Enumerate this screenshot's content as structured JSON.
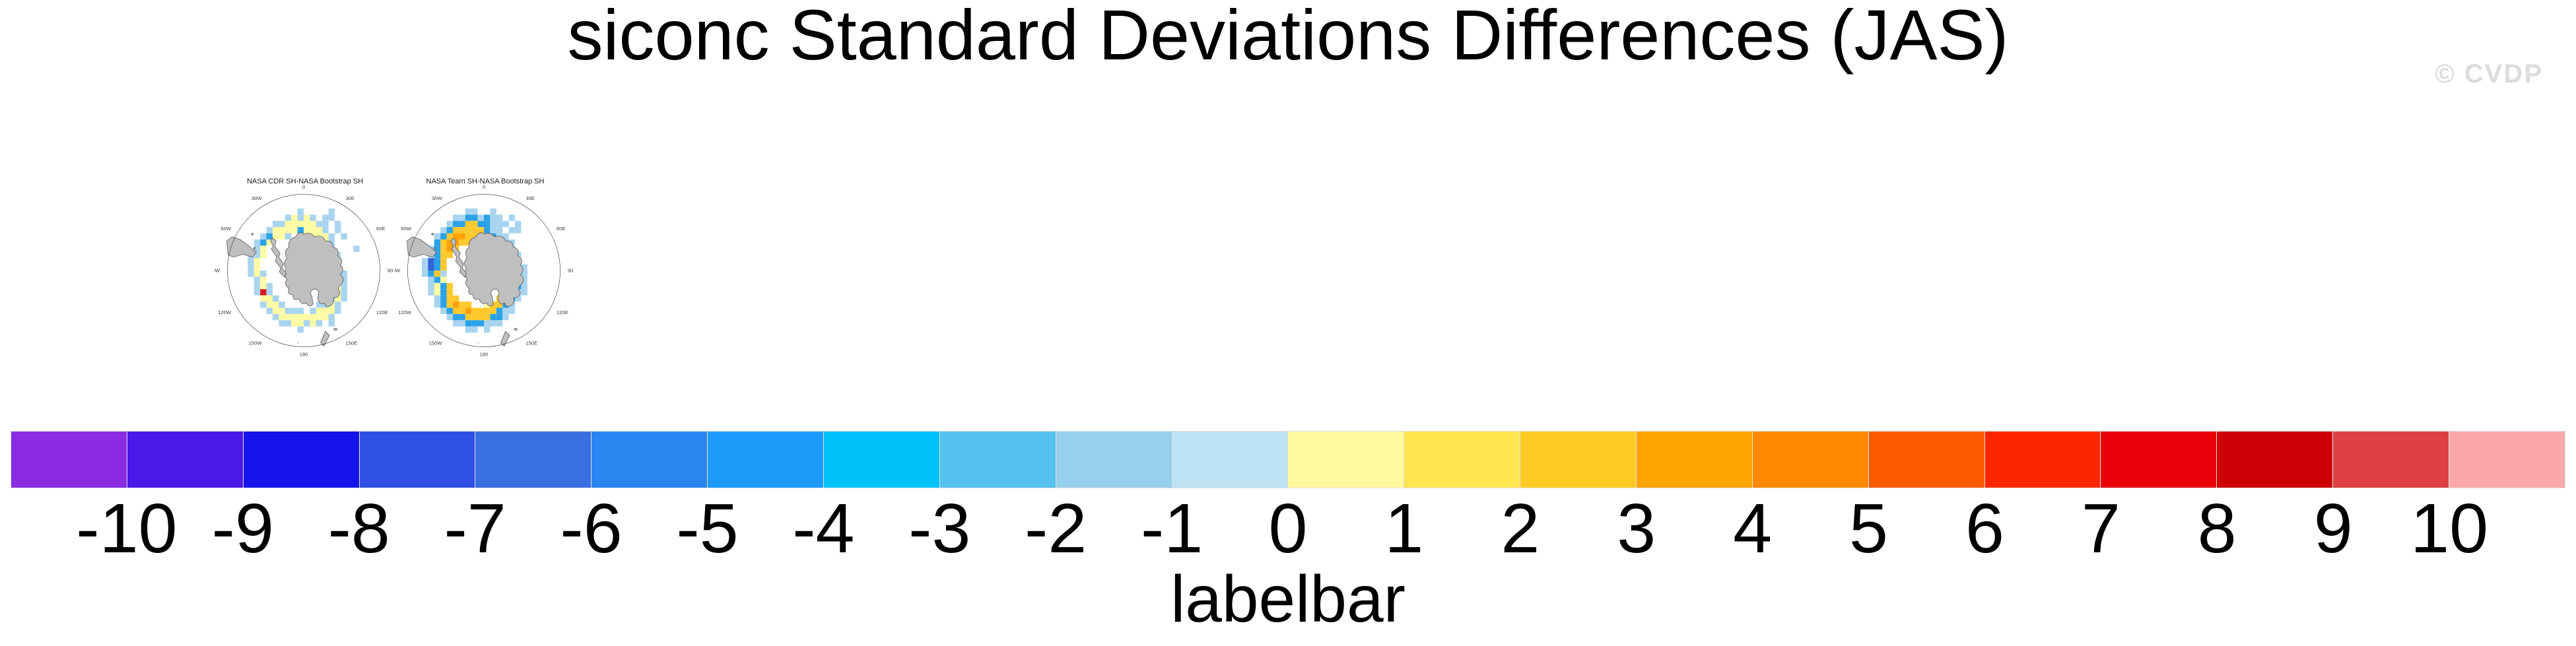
{
  "title": "siconc Standard Deviations Differences (JAS)",
  "watermark": "© CVDP",
  "chart_data": {
    "type": "heatmap",
    "title": "siconc Standard Deviations Differences (JAS)",
    "variable": "siconc",
    "season": "JAS",
    "panels": [
      {
        "title": "NASA CDR SH-NASA Bootstrap SH",
        "projection": "south polar stereographic",
        "grid": [
          "......................",
          "..........b....b......",
          "........bybyb.bb......",
          "......bbyyyyybb.b.....",
          ".....byyyyByyyb.b.....",
          "....bByyb.byyyyb.b....",
          "...bBy......byyb......",
          "...by........yyb...b..",
          "..bby.........ybb.....",
          "..by...........yb.....",
          "..by...........yb.....",
          "..byb...........yb....",
          "...by...........yb....",
          "...byb..........yb....",
          "...brb.........byb....",
          "....yyb........byb....",
          "....byyb.....bbyb.....",
          ".....byybbb.byyyb.....",
          "......byyyyyyyyb......",
          ".......bbyybyb.b......",
          "..........b...........",
          "......................"
        ]
      },
      {
        "title": "NASA Team SH-NASA Bootstrap SH",
        "projection": "south polar stereographic",
        "grid": [
          "......................",
          "........bb..b.........",
          "......bbBBbBbb.b......",
          ".....bBBYYBBbbb.b.....",
          "....bBYYYYYBbb.bb.....",
          "...bBYooYYYYBbb.......",
          "...BYooYY.byYBbb......",
          "..bBYoY.....yYBb......",
          "..bBYY.......YYBb.....",
          ".bdBY.........YBb.....",
          ".bdBY.........YBbb....",
          ".bBYb..........YBb....",
          "..bBy..........YBb....",
          "..byBY........bYBb....",
          "..byBY........YBbb....",
          "...bBYY......YYBb.....",
          "...bBYoYY..yYYBb......",
          "....bBYYoYYYYBbb......",
          ".....bBBYYYYBBb.......",
          "......bbBBBbbb........",
          "........bb.b..........",
          "......................"
        ]
      }
    ],
    "lon_labels": [
      "0",
      "30E",
      "60E",
      "90E",
      "120E",
      "150E",
      "180",
      "150W",
      "120W",
      "90W",
      "60W",
      "30W"
    ],
    "cell_colors": {
      "b": "#A8D4EF",
      "B": "#2AA2E8",
      "d": "#2F62D8",
      "y": "#FDFAA4",
      "Y": "#FFC92E",
      "o": "#FFA107",
      "r": "#D31A1A"
    },
    "land_color": "#BFBFBF",
    "colorbar": {
      "caption": "labelbar",
      "tick_labels": [
        "-10",
        "-9",
        "-8",
        "-7",
        "-6",
        "-5",
        "-4",
        "-3",
        "-2",
        "-1",
        "0",
        "1",
        "2",
        "3",
        "4",
        "5",
        "6",
        "7",
        "8",
        "9",
        "10"
      ],
      "value_range": [
        -10,
        10
      ],
      "n_boxes": 22,
      "colors": [
        "#8B2BE2",
        "#4B18E8",
        "#1414EB",
        "#3050E5",
        "#3A6FE0",
        "#2A85F0",
        "#1E9BFA",
        "#00C2FA",
        "#55C2F0",
        "#97D0EB",
        "#BDE3F5",
        "#FFFA9E",
        "#FFE54E",
        "#FFCA24",
        "#FFA502",
        "#FF8A00",
        "#FF5A00",
        "#FE2600",
        "#E90008",
        "#CC0004",
        "#DD4044",
        "#FCA8A8"
      ]
    }
  }
}
